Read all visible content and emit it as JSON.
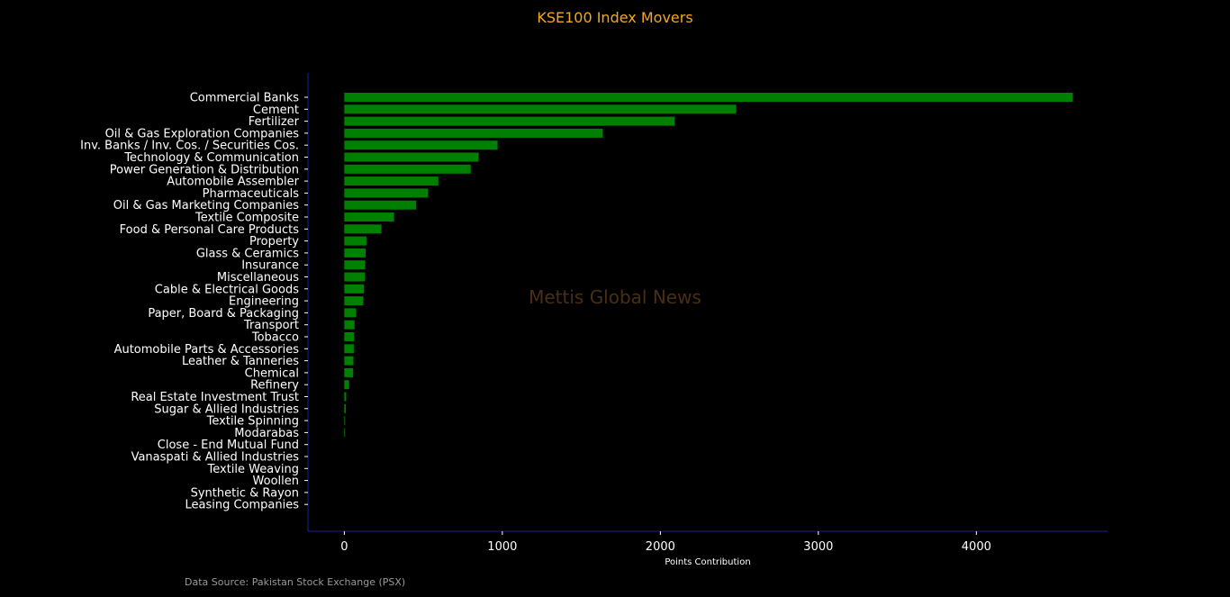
{
  "chart_data": {
    "type": "bar",
    "orientation": "horizontal",
    "title": "KSE100 Index Movers",
    "xlabel": "Points Contribution",
    "ylabel": "",
    "xlim": [
      -230,
      4830
    ],
    "xticks": [
      0,
      1000,
      2000,
      3000,
      4000
    ],
    "grid": false,
    "watermark": "Mettis Global News",
    "source": "Data Source: Pakistan Stock Exchange (PSX)",
    "colors": {
      "bar": "#008000",
      "axis": "#1f1f8f",
      "title": "#f5a623",
      "text": "#ffffff",
      "watermark": "#4a2e12",
      "source": "#9a9a9a"
    },
    "categories": [
      "Commercial Banks",
      "Cement",
      "Fertilizer",
      "Oil & Gas Exploration Companies",
      "Inv. Banks / Inv. Cos. / Securities Cos.",
      "Technology & Communication",
      "Power Generation & Distribution",
      "Automobile Assembler",
      "Pharmaceuticals",
      "Oil & Gas Marketing Companies",
      "Textile Composite",
      "Food & Personal Care Products",
      "Property",
      "Glass & Ceramics",
      "Insurance",
      "Miscellaneous",
      "Cable & Electrical Goods",
      "Engineering",
      "Paper, Board & Packaging",
      "Transport",
      "Tobacco",
      "Automobile Parts & Accessories",
      "Leather & Tanneries",
      "Chemical",
      "Refinery",
      "Real Estate Investment Trust",
      "Sugar & Allied Industries",
      "Textile Spinning",
      "Modarabas",
      "Close - End Mutual Fund",
      "Vanaspati & Allied Industries",
      "Textile Weaving",
      "Woollen",
      "Synthetic & Rayon",
      "Leasing Companies"
    ],
    "values": [
      4610,
      2480,
      2090,
      1635,
      970,
      850,
      800,
      595,
      530,
      455,
      315,
      235,
      140,
      135,
      132,
      130,
      125,
      120,
      75,
      65,
      62,
      60,
      58,
      56,
      30,
      12,
      10,
      5,
      4,
      0,
      0,
      0,
      0,
      0,
      0
    ]
  }
}
